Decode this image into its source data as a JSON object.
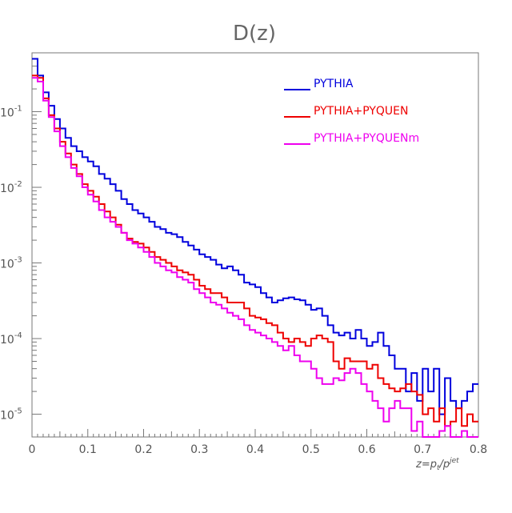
{
  "chart_data": {
    "type": "line",
    "title": "D(z)",
    "xlabel": "z=p_t/p^jet",
    "ylabel": "",
    "xlim": [
      0,
      0.8
    ],
    "ylim": [
      5e-06,
      0.6
    ],
    "yscale": "log",
    "x_ticks": [
      "0",
      "0.1",
      "0.2",
      "0.3",
      "0.4",
      "0.5",
      "0.6",
      "0.7",
      "0.8"
    ],
    "y_ticks": [
      {
        "value": 0.1,
        "base": "10",
        "exp": "-1"
      },
      {
        "value": 0.01,
        "base": "10",
        "exp": "-2"
      },
      {
        "value": 0.001,
        "base": "10",
        "exp": "-3"
      },
      {
        "value": 0.0001,
        "base": "10",
        "exp": "-4"
      },
      {
        "value": 1e-05,
        "base": "10",
        "exp": "-5"
      }
    ],
    "legend_position": "top-right",
    "series": [
      {
        "name": "PYTHIA",
        "color": "#0000dd",
        "x": [
          0,
          0.01,
          0.02,
          0.03,
          0.04,
          0.05,
          0.06,
          0.07,
          0.08,
          0.09,
          0.1,
          0.11,
          0.12,
          0.13,
          0.14,
          0.15,
          0.16,
          0.17,
          0.18,
          0.19,
          0.2,
          0.21,
          0.22,
          0.23,
          0.24,
          0.25,
          0.26,
          0.27,
          0.28,
          0.29,
          0.3,
          0.31,
          0.32,
          0.33,
          0.34,
          0.35,
          0.36,
          0.37,
          0.38,
          0.39,
          0.4,
          0.41,
          0.42,
          0.43,
          0.44,
          0.45,
          0.46,
          0.47,
          0.48,
          0.49,
          0.5,
          0.51,
          0.52,
          0.53,
          0.54,
          0.55,
          0.56,
          0.57,
          0.58,
          0.59,
          0.6,
          0.61,
          0.62,
          0.63,
          0.64,
          0.65,
          0.66,
          0.67,
          0.68,
          0.69,
          0.7,
          0.71,
          0.72,
          0.73,
          0.74,
          0.75,
          0.76,
          0.77,
          0.78,
          0.79
        ],
        "values": [
          0.5,
          0.3,
          0.18,
          0.12,
          0.08,
          0.06,
          0.045,
          0.035,
          0.03,
          0.025,
          0.022,
          0.019,
          0.015,
          0.013,
          0.011,
          0.009,
          0.007,
          0.006,
          0.005,
          0.0045,
          0.004,
          0.0035,
          0.003,
          0.0028,
          0.0025,
          0.0024,
          0.0022,
          0.0019,
          0.0017,
          0.0015,
          0.0013,
          0.0012,
          0.0011,
          0.00095,
          0.00085,
          0.0009,
          0.0008,
          0.0007,
          0.00055,
          0.00052,
          0.00048,
          0.0004,
          0.00035,
          0.0003,
          0.00032,
          0.00034,
          0.00035,
          0.00033,
          0.00032,
          0.00028,
          0.00024,
          0.00025,
          0.0002,
          0.00015,
          0.00012,
          0.00011,
          0.00012,
          0.0001,
          0.00013,
          0.0001,
          8e-05,
          9e-05,
          0.00012,
          8e-05,
          6e-05,
          4e-05,
          4e-05,
          2e-05,
          3.5e-05,
          1.5e-05,
          4e-05,
          2e-05,
          4e-05,
          1e-05,
          3e-05,
          1.5e-05,
          1.2e-05,
          1.5e-05,
          2e-05,
          2.5e-05
        ]
      },
      {
        "name": "PYTHIA+PYQUEN",
        "color": "#ee0000",
        "x": [
          0,
          0.01,
          0.02,
          0.03,
          0.04,
          0.05,
          0.06,
          0.07,
          0.08,
          0.09,
          0.1,
          0.11,
          0.12,
          0.13,
          0.14,
          0.15,
          0.16,
          0.17,
          0.18,
          0.19,
          0.2,
          0.21,
          0.22,
          0.23,
          0.24,
          0.25,
          0.26,
          0.27,
          0.28,
          0.29,
          0.3,
          0.31,
          0.32,
          0.33,
          0.34,
          0.35,
          0.36,
          0.37,
          0.38,
          0.39,
          0.4,
          0.41,
          0.42,
          0.43,
          0.44,
          0.45,
          0.46,
          0.47,
          0.48,
          0.49,
          0.5,
          0.51,
          0.52,
          0.53,
          0.54,
          0.55,
          0.56,
          0.57,
          0.58,
          0.59,
          0.6,
          0.61,
          0.62,
          0.63,
          0.64,
          0.65,
          0.66,
          0.67,
          0.68,
          0.69,
          0.7,
          0.71,
          0.72,
          0.73,
          0.74,
          0.75,
          0.76,
          0.77,
          0.78,
          0.79
        ],
        "values": [
          0.3,
          0.28,
          0.15,
          0.09,
          0.06,
          0.04,
          0.028,
          0.02,
          0.015,
          0.011,
          0.009,
          0.0075,
          0.006,
          0.0048,
          0.004,
          0.0032,
          0.0025,
          0.0021,
          0.0019,
          0.0018,
          0.0016,
          0.0014,
          0.0012,
          0.0011,
          0.001,
          0.0009,
          0.0008,
          0.00075,
          0.0007,
          0.0006,
          0.0005,
          0.00045,
          0.0004,
          0.0004,
          0.00035,
          0.0003,
          0.0003,
          0.0003,
          0.00025,
          0.0002,
          0.00019,
          0.00018,
          0.00016,
          0.00015,
          0.00012,
          0.0001,
          9e-05,
          0.0001,
          9e-05,
          8e-05,
          0.0001,
          0.00011,
          0.0001,
          9e-05,
          5e-05,
          4e-05,
          5.5e-05,
          5e-05,
          5e-05,
          5e-05,
          4e-05,
          4.5e-05,
          3e-05,
          2.5e-05,
          2.2e-05,
          2e-05,
          2.2e-05,
          2.5e-05,
          2e-05,
          1.8e-05,
          1e-05,
          1.2e-05,
          8e-06,
          1.2e-05,
          7e-06,
          8e-06,
          1.2e-05,
          7e-06,
          1e-05,
          8e-06
        ]
      },
      {
        "name": "PYTHIA+PYQUENm",
        "color": "#ee00ee",
        "x": [
          0,
          0.01,
          0.02,
          0.03,
          0.04,
          0.05,
          0.06,
          0.07,
          0.08,
          0.09,
          0.1,
          0.11,
          0.12,
          0.13,
          0.14,
          0.15,
          0.16,
          0.17,
          0.18,
          0.19,
          0.2,
          0.21,
          0.22,
          0.23,
          0.24,
          0.25,
          0.26,
          0.27,
          0.28,
          0.29,
          0.3,
          0.31,
          0.32,
          0.33,
          0.34,
          0.35,
          0.36,
          0.37,
          0.38,
          0.39,
          0.4,
          0.41,
          0.42,
          0.43,
          0.44,
          0.45,
          0.46,
          0.47,
          0.48,
          0.49,
          0.5,
          0.51,
          0.52,
          0.53,
          0.54,
          0.55,
          0.56,
          0.57,
          0.58,
          0.59,
          0.6,
          0.61,
          0.62,
          0.63,
          0.64,
          0.65,
          0.66,
          0.67,
          0.68,
          0.69,
          0.7,
          0.71,
          0.72,
          0.73,
          0.74,
          0.75,
          0.76,
          0.77,
          0.78,
          0.79
        ],
        "values": [
          0.28,
          0.25,
          0.14,
          0.085,
          0.055,
          0.035,
          0.025,
          0.018,
          0.014,
          0.01,
          0.008,
          0.0065,
          0.005,
          0.004,
          0.0035,
          0.003,
          0.0025,
          0.002,
          0.0018,
          0.0016,
          0.0014,
          0.0012,
          0.001,
          0.0009,
          0.0008,
          0.00075,
          0.00065,
          0.0006,
          0.00055,
          0.00045,
          0.0004,
          0.00035,
          0.0003,
          0.00028,
          0.00025,
          0.00022,
          0.0002,
          0.00018,
          0.00015,
          0.00013,
          0.00012,
          0.00011,
          0.0001,
          9e-05,
          8e-05,
          7e-05,
          8e-05,
          6e-05,
          5e-05,
          5e-05,
          4e-05,
          3e-05,
          2.5e-05,
          2.5e-05,
          3e-05,
          2.8e-05,
          3.5e-05,
          4e-05,
          3.5e-05,
          2.5e-05,
          2e-05,
          1.5e-05,
          1.2e-05,
          8e-06,
          1.2e-05,
          1.5e-05,
          1.2e-05,
          1.2e-05,
          6e-06,
          8e-06,
          5e-06,
          5e-06,
          5e-06,
          6e-06,
          7e-06,
          5e-06,
          5e-06,
          6e-06,
          5e-06,
          5e-06
        ]
      }
    ]
  }
}
